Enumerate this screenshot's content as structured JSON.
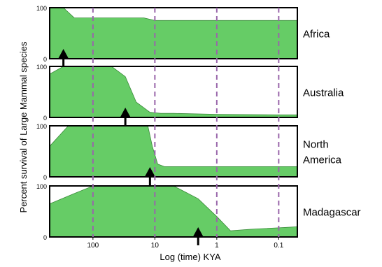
{
  "chart_data": {
    "type": "area",
    "title": "",
    "xlabel": "Log (time) KYA",
    "ylabel": "Percent survival of Large Mammal species",
    "x_scale": "log-reversed",
    "xlim": [
      500,
      0.05
    ],
    "ylim": [
      0,
      100
    ],
    "x_ticks": [
      {
        "value": 100,
        "label": "100"
      },
      {
        "value": 10,
        "label": "10"
      },
      {
        "value": 1,
        "label": "1"
      },
      {
        "value": 0.1,
        "label": "0.1"
      }
    ],
    "y_ticks": [
      {
        "value": 100,
        "label": "100"
      },
      {
        "value": 0,
        "label": "0"
      }
    ],
    "grid": "dashed vertical lines at 100, 10, 1, 0.1 KYA",
    "fill_color": "#66cc66",
    "grid_color": "#9966aa",
    "panels": [
      {
        "region": "Africa",
        "arrow_at_kya": 300,
        "points": [
          [
            500,
            100
          ],
          [
            300,
            100
          ],
          [
            200,
            80
          ],
          [
            100,
            80
          ],
          [
            40,
            80
          ],
          [
            15,
            80
          ],
          [
            10,
            75
          ],
          [
            1,
            75
          ],
          [
            0.1,
            75
          ],
          [
            0.05,
            75
          ]
        ]
      },
      {
        "region": "Australia",
        "arrow_at_kya": 30,
        "points": [
          [
            500,
            85
          ],
          [
            300,
            100
          ],
          [
            80,
            100
          ],
          [
            50,
            100
          ],
          [
            30,
            80
          ],
          [
            20,
            30
          ],
          [
            12,
            10
          ],
          [
            8,
            8
          ],
          [
            5,
            8
          ],
          [
            1,
            6
          ],
          [
            0.1,
            5
          ],
          [
            0.05,
            5
          ]
        ]
      },
      {
        "region": "North\nAmerica",
        "arrow_at_kya": 12,
        "points": [
          [
            500,
            60
          ],
          [
            250,
            100
          ],
          [
            100,
            100
          ],
          [
            20,
            100
          ],
          [
            13,
            100
          ],
          [
            11,
            60
          ],
          [
            9,
            25
          ],
          [
            7,
            20
          ],
          [
            1,
            20
          ],
          [
            0.1,
            20
          ],
          [
            0.05,
            20
          ]
        ]
      },
      {
        "region": "Madagascar",
        "arrow_at_kya": 2,
        "points": [
          [
            500,
            65
          ],
          [
            200,
            85
          ],
          [
            100,
            100
          ],
          [
            10,
            100
          ],
          [
            5,
            100
          ],
          [
            2,
            75
          ],
          [
            1,
            40
          ],
          [
            0.6,
            12
          ],
          [
            0.3,
            15
          ],
          [
            0.1,
            18
          ],
          [
            0.05,
            20
          ]
        ]
      }
    ]
  }
}
